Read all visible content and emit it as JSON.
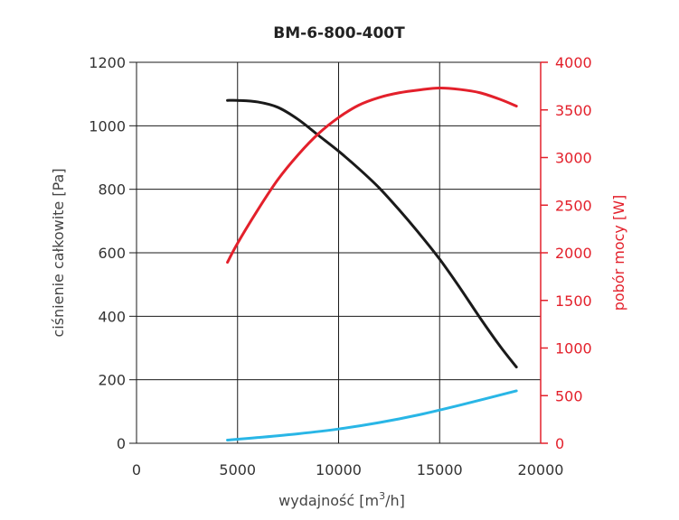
{
  "chart_data": {
    "type": "line",
    "title": "BM-6-800-400T",
    "xlabel_main": "wydajność [m",
    "xlabel_sup": "3",
    "xlabel_end": "/h]",
    "ylabel_left": "ciśnienie całkowite [Pa]",
    "ylabel_right": "pobór mocy [W]",
    "xlim": [
      0,
      20000
    ],
    "ylim_left": [
      0,
      1200
    ],
    "ylim_right": [
      0,
      4000
    ],
    "x_ticks": [
      "0",
      "5000",
      "10000",
      "15000",
      "20000"
    ],
    "y_left_ticks": [
      "0",
      "200",
      "400",
      "600",
      "800",
      "1000",
      "1200"
    ],
    "y_right_ticks": [
      "0",
      "500",
      "1000",
      "1500",
      "2000",
      "2500",
      "3000",
      "3500",
      "4000"
    ],
    "grid": true,
    "series": [
      {
        "axis": "left",
        "color": "#1a1a1a",
        "x": [
          4500,
          5000,
          6000,
          7000,
          8000,
          9000,
          10000,
          11000,
          12000,
          13000,
          14000,
          15000,
          16000,
          17000,
          18000,
          18800
        ],
        "y": [
          1080,
          1080,
          1075,
          1058,
          1020,
          970,
          920,
          865,
          805,
          735,
          660,
          580,
          490,
          395,
          305,
          240
        ]
      },
      {
        "axis": "right",
        "color": "#e3202b",
        "x": [
          4500,
          5000,
          6000,
          7000,
          8000,
          9000,
          10000,
          11000,
          12000,
          13000,
          14000,
          15000,
          16000,
          17000,
          18000,
          18800
        ],
        "y": [
          1900,
          2100,
          2450,
          2770,
          3030,
          3250,
          3420,
          3550,
          3630,
          3680,
          3710,
          3730,
          3715,
          3680,
          3610,
          3540
        ]
      },
      {
        "axis": "left",
        "color": "#29b6e6",
        "x": [
          4500,
          6000,
          8000,
          10000,
          12000,
          14000,
          16000,
          18800
        ],
        "y": [
          10,
          18,
          30,
          45,
          65,
          90,
          120,
          165
        ]
      }
    ]
  }
}
